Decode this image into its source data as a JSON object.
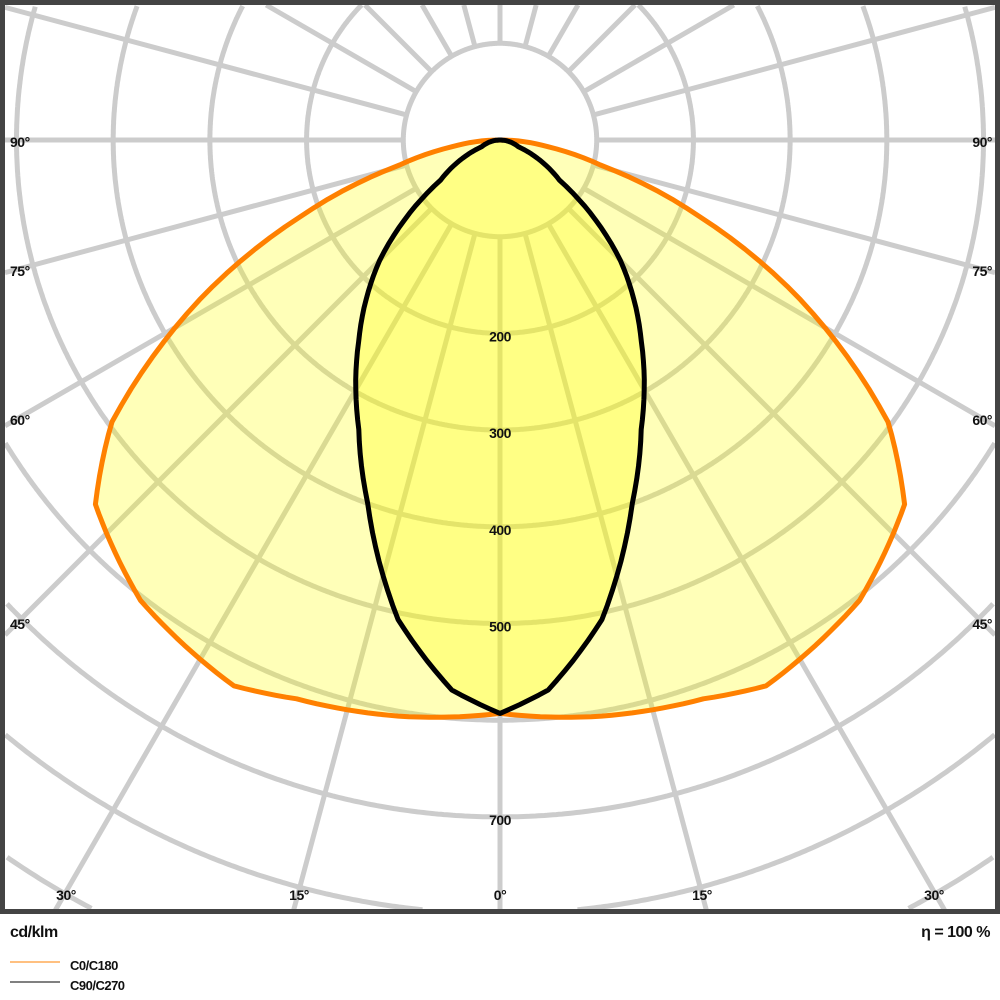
{
  "chart_data": {
    "type": "polar",
    "unit_label": "cd/klm",
    "efficiency_label": "η = 100 %",
    "radial_ticks": [
      100,
      200,
      300,
      400,
      500,
      600,
      700,
      800,
      900
    ],
    "radial_tick_labels": [
      "200",
      "300",
      "400",
      "500",
      "700"
    ],
    "angle_labels_left": [
      "90°",
      "75°",
      "60°",
      "45°"
    ],
    "angle_labels_right": [
      "90°",
      "75°",
      "60°",
      "45°"
    ],
    "angle_labels_bottom": [
      "30°",
      "15°",
      "0°",
      "15°",
      "30°"
    ],
    "grid": true,
    "legend_placement": "bottom-left",
    "series": [
      {
        "name": "C0/C180",
        "color": "#ff8000",
        "angles": [
          0,
          10,
          20,
          26,
          38,
          48,
          54,
          62,
          69,
          76,
          82,
          90
        ],
        "values": [
          593,
          605,
          615,
          628,
          604,
          563,
          496,
          352,
          221,
          107,
          50,
          0
        ]
      },
      {
        "name": "C90/C270",
        "color": "#000000",
        "angles": [
          0,
          5,
          12,
          20,
          26,
          35,
          45,
          56,
          70,
          90
        ],
        "values": [
          593,
          571,
          507,
          400,
          333,
          255,
          176,
          74,
          20,
          0
        ]
      }
    ]
  }
}
